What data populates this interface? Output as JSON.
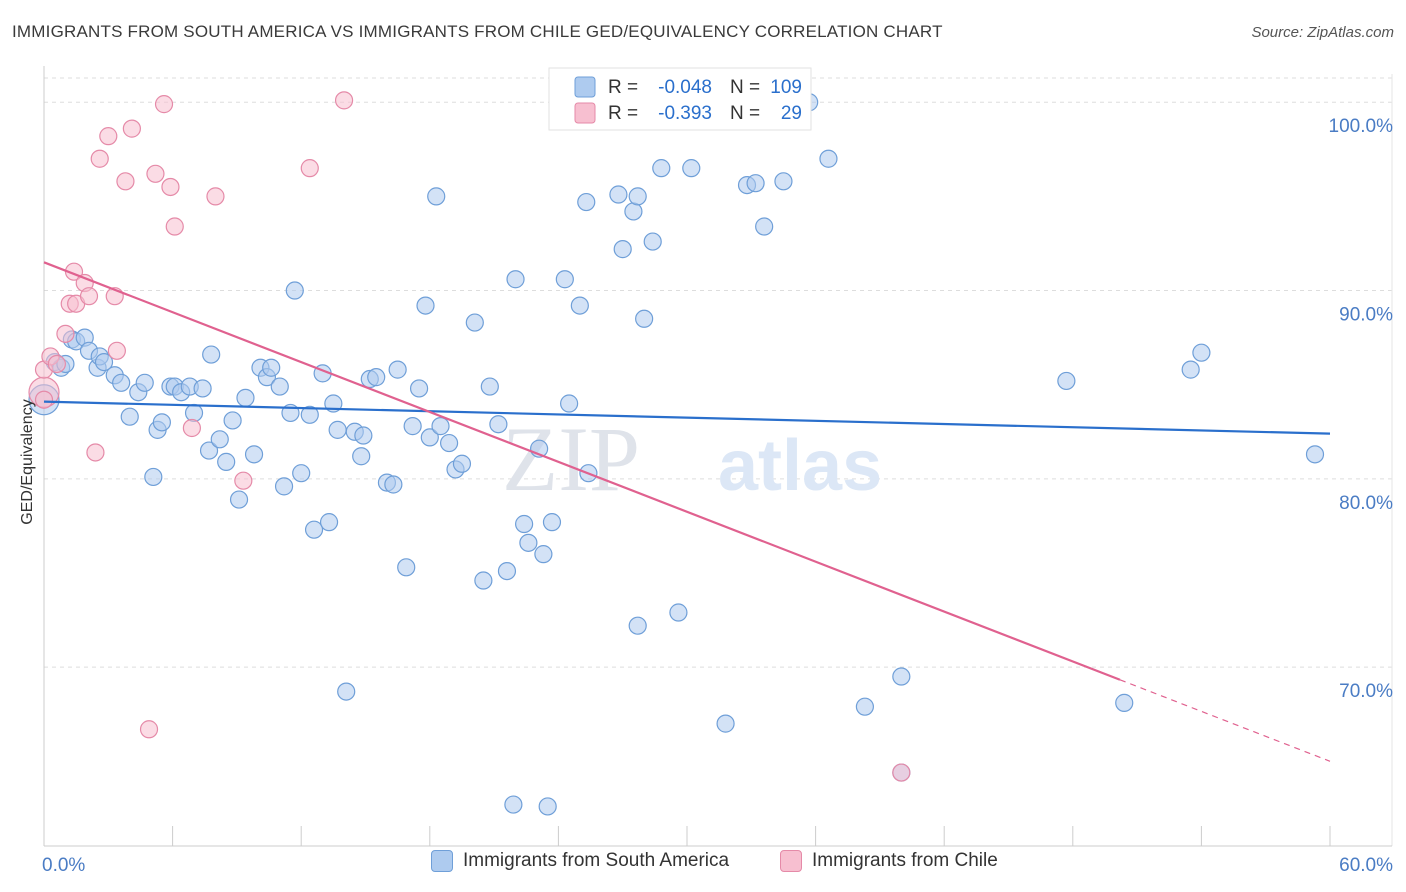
{
  "title": "IMMIGRANTS FROM SOUTH AMERICA VS IMMIGRANTS FROM CHILE GED/EQUIVALENCY CORRELATION CHART",
  "source": "Source: ZipAtlas.com",
  "colors": {
    "blue_fill": "#aecbef",
    "blue_stroke": "#6f9fd8",
    "blue_line": "#2a6fcc",
    "pink_fill": "#f7bfd0",
    "pink_stroke": "#e58aa8",
    "pink_line": "#e0618f",
    "axis_label": "#4a7cc4",
    "grid": "#dddddd"
  },
  "legend_top": {
    "rows": [
      {
        "r_label": "R =",
        "r_value": "-0.048",
        "n_label": "N =",
        "n_value": "109"
      },
      {
        "r_label": "R =",
        "r_value": "-0.393",
        "n_label": "N =",
        "n_value": "29"
      }
    ]
  },
  "legend_bottom": {
    "items": [
      "Immigrants from South America",
      "Immigrants from Chile"
    ]
  },
  "watermark": {
    "zip": "ZIP",
    "atlas": "atlas"
  },
  "chart_data": {
    "type": "scatter",
    "title": "IMMIGRANTS FROM SOUTH AMERICA VS IMMIGRANTS FROM CHILE GED/EQUIVALENCY CORRELATION CHART",
    "xlabel": "",
    "ylabel": "GED/Equivalency",
    "xlim": [
      0,
      60
    ],
    "ylim": [
      60.5,
      101.5
    ],
    "x_tick_labels": [
      "0.0%",
      "60.0%"
    ],
    "y_ticks": [
      70,
      80,
      90,
      100
    ],
    "y_tick_labels": [
      "70.0%",
      "80.0%",
      "90.0%",
      "100.0%"
    ],
    "grid": true,
    "legend_position": "top-center",
    "series": [
      {
        "name": "Immigrants from South America",
        "r": -0.048,
        "n": 109,
        "trend": {
          "x": [
            0,
            60
          ],
          "y": [
            84.1,
            82.4
          ],
          "dashed_from": null
        },
        "points": [
          [
            0.0,
            84.2
          ],
          [
            0.5,
            86.2
          ],
          [
            0.8,
            85.9
          ],
          [
            1.0,
            86.1
          ],
          [
            1.3,
            87.4
          ],
          [
            1.5,
            87.3
          ],
          [
            1.9,
            87.5
          ],
          [
            2.1,
            86.8
          ],
          [
            2.5,
            85.9
          ],
          [
            2.6,
            86.5
          ],
          [
            2.8,
            86.2
          ],
          [
            3.3,
            85.5
          ],
          [
            3.6,
            85.1
          ],
          [
            4.0,
            83.3
          ],
          [
            4.4,
            84.6
          ],
          [
            4.7,
            85.1
          ],
          [
            5.1,
            80.1
          ],
          [
            5.3,
            82.6
          ],
          [
            5.5,
            83.0
          ],
          [
            5.9,
            84.9
          ],
          [
            6.1,
            84.9
          ],
          [
            6.4,
            84.6
          ],
          [
            6.8,
            84.9
          ],
          [
            7.0,
            83.5
          ],
          [
            7.4,
            84.8
          ],
          [
            7.7,
            81.5
          ],
          [
            7.8,
            86.6
          ],
          [
            8.2,
            82.1
          ],
          [
            8.5,
            80.9
          ],
          [
            8.8,
            83.1
          ],
          [
            9.1,
            78.9
          ],
          [
            9.4,
            84.3
          ],
          [
            9.8,
            81.3
          ],
          [
            10.1,
            85.9
          ],
          [
            10.4,
            85.4
          ],
          [
            10.6,
            85.9
          ],
          [
            11.0,
            84.9
          ],
          [
            11.2,
            79.6
          ],
          [
            11.5,
            83.5
          ],
          [
            11.7,
            90.0
          ],
          [
            12.0,
            80.3
          ],
          [
            12.4,
            83.4
          ],
          [
            12.6,
            77.3
          ],
          [
            13.0,
            85.6
          ],
          [
            13.3,
            77.7
          ],
          [
            13.5,
            84.0
          ],
          [
            13.7,
            82.6
          ],
          [
            14.1,
            68.7
          ],
          [
            14.5,
            82.5
          ],
          [
            14.8,
            81.2
          ],
          [
            14.9,
            82.3
          ],
          [
            15.2,
            85.3
          ],
          [
            15.5,
            85.4
          ],
          [
            16.0,
            79.8
          ],
          [
            16.3,
            79.7
          ],
          [
            16.5,
            85.8
          ],
          [
            16.9,
            75.3
          ],
          [
            17.2,
            82.8
          ],
          [
            17.5,
            84.8
          ],
          [
            17.8,
            89.2
          ],
          [
            18.0,
            82.2
          ],
          [
            18.3,
            95.0
          ],
          [
            18.5,
            82.8
          ],
          [
            18.9,
            81.9
          ],
          [
            19.2,
            80.5
          ],
          [
            19.5,
            80.8
          ],
          [
            20.1,
            88.3
          ],
          [
            20.5,
            74.6
          ],
          [
            20.8,
            84.9
          ],
          [
            21.2,
            82.9
          ],
          [
            21.6,
            75.1
          ],
          [
            21.9,
            62.7
          ],
          [
            22.0,
            90.6
          ],
          [
            22.4,
            77.6
          ],
          [
            22.6,
            76.6
          ],
          [
            23.1,
            81.6
          ],
          [
            23.3,
            76.0
          ],
          [
            23.5,
            62.6
          ],
          [
            23.7,
            77.7
          ],
          [
            24.3,
            90.6
          ],
          [
            24.5,
            84.0
          ],
          [
            25.0,
            89.2
          ],
          [
            25.4,
            80.3
          ],
          [
            25.3,
            94.7
          ],
          [
            26.8,
            95.1
          ],
          [
            27.0,
            92.2
          ],
          [
            27.5,
            94.2
          ],
          [
            27.7,
            95.0
          ],
          [
            27.7,
            72.2
          ],
          [
            28.0,
            88.5
          ],
          [
            28.4,
            92.6
          ],
          [
            28.8,
            96.5
          ],
          [
            29.6,
            72.9
          ],
          [
            30.2,
            96.5
          ],
          [
            31.8,
            67.0
          ],
          [
            32.8,
            95.6
          ],
          [
            33.2,
            95.7
          ],
          [
            33.6,
            93.4
          ],
          [
            34.5,
            95.8
          ],
          [
            35.7,
            100.0
          ],
          [
            36.6,
            97.0
          ],
          [
            38.3,
            67.9
          ],
          [
            40.0,
            69.5
          ],
          [
            40.0,
            64.4
          ],
          [
            47.7,
            85.2
          ],
          [
            50.4,
            68.1
          ],
          [
            53.5,
            85.8
          ],
          [
            54.0,
            86.7
          ],
          [
            59.3,
            81.3
          ]
        ]
      },
      {
        "name": "Immigrants from Chile",
        "r": -0.393,
        "n": 29,
        "trend": {
          "x": [
            0,
            60
          ],
          "y": [
            91.5,
            65.0
          ],
          "dashed_from": 50.2
        },
        "points": [
          [
            0.0,
            84.6
          ],
          [
            0.0,
            85.8
          ],
          [
            0.3,
            86.5
          ],
          [
            0.6,
            86.1
          ],
          [
            1.0,
            87.7
          ],
          [
            1.2,
            89.3
          ],
          [
            1.4,
            91.0
          ],
          [
            1.5,
            89.3
          ],
          [
            1.9,
            90.4
          ],
          [
            2.1,
            89.7
          ],
          [
            2.4,
            81.4
          ],
          [
            2.6,
            97.0
          ],
          [
            3.0,
            98.2
          ],
          [
            3.3,
            89.7
          ],
          [
            3.4,
            86.8
          ],
          [
            3.8,
            95.8
          ],
          [
            4.1,
            98.6
          ],
          [
            4.9,
            66.7
          ],
          [
            5.2,
            96.2
          ],
          [
            5.6,
            99.9
          ],
          [
            5.9,
            95.5
          ],
          [
            6.1,
            93.4
          ],
          [
            6.9,
            82.7
          ],
          [
            8.0,
            95.0
          ],
          [
            9.3,
            79.9
          ],
          [
            12.4,
            96.5
          ],
          [
            14.0,
            100.1
          ],
          [
            40.0,
            64.4
          ],
          [
            0.0,
            84.2
          ]
        ]
      }
    ]
  }
}
